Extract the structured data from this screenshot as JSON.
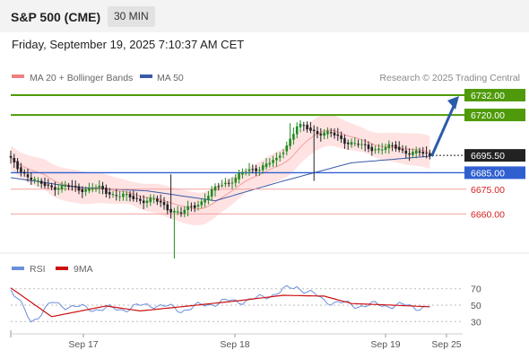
{
  "header": {
    "title": "S&P 500 (CME)",
    "timeframe": "30 MIN"
  },
  "datetime": "Friday, September 19, 2025 7:10:37 AM CET",
  "legend": {
    "bollinger": "MA 20 + Bollinger Bands",
    "ma50": "MA 50",
    "rsi": "RSI",
    "rsi_ma": "9MA",
    "credit": "Research © 2025 Trading Central"
  },
  "colors": {
    "up": "#1f8a1f",
    "down": "#222222",
    "bb_band": "#ffdada",
    "bb_mid": "#f08080",
    "ma50": "#3a5aa8",
    "resistance": "#4f9a0a",
    "support_line": "#f5a0a0",
    "support_label": "#d62020",
    "current": "#222222",
    "pivot": "#3060d0",
    "arrow": "#2a5caa",
    "rsi": "#6a8fdc",
    "rsi_ma": "#cc1111"
  },
  "chart_data": {
    "type": "candlestick",
    "x_ticks": [
      "Sep 17",
      "Sep 18",
      "Sep 19",
      "Sep 25"
    ],
    "price_range": [
      6633,
      6738
    ],
    "levels": [
      {
        "label": "6732.00",
        "value": 6732,
        "kind": "resistance"
      },
      {
        "label": "6720.00",
        "value": 6720,
        "kind": "resistance"
      },
      {
        "label": "6695.50",
        "value": 6695.5,
        "kind": "current"
      },
      {
        "label": "6685.00",
        "value": 6685,
        "kind": "pivot"
      },
      {
        "label": "6675.00",
        "value": 6675,
        "kind": "support"
      },
      {
        "label": "6660.00",
        "value": 6660,
        "kind": "support"
      }
    ],
    "anchors": [
      {
        "i": 0,
        "v": 6692
      },
      {
        "i": 8,
        "v": 6678
      },
      {
        "i": 16,
        "v": 6676
      },
      {
        "i": 26,
        "v": 6675
      },
      {
        "i": 34,
        "v": 6670
      },
      {
        "i": 42,
        "v": 6668
      },
      {
        "i": 50,
        "v": 6660
      },
      {
        "i": 56,
        "v": 6668
      },
      {
        "i": 62,
        "v": 6678
      },
      {
        "i": 72,
        "v": 6688
      },
      {
        "i": 78,
        "v": 6692
      },
      {
        "i": 84,
        "v": 6713
      },
      {
        "i": 94,
        "v": 6708
      },
      {
        "i": 104,
        "v": 6700
      },
      {
        "i": 113,
        "v": 6700
      },
      {
        "i": 118,
        "v": 6697
      },
      {
        "i": 123,
        "v": 6695.5
      }
    ],
    "ma50": [
      {
        "i": 0,
        "v": 6682
      },
      {
        "i": 20,
        "v": 6676
      },
      {
        "i": 40,
        "v": 6674
      },
      {
        "i": 60,
        "v": 6668
      },
      {
        "i": 80,
        "v": 6680
      },
      {
        "i": 100,
        "v": 6691
      },
      {
        "i": 123,
        "v": 6695
      }
    ],
    "rsi": {
      "range": [
        15,
        85
      ],
      "ticks": [
        70,
        50,
        30
      ],
      "rsi_anchors": [
        {
          "i": 0,
          "v": 70
        },
        {
          "i": 6,
          "v": 30
        },
        {
          "i": 12,
          "v": 52
        },
        {
          "i": 22,
          "v": 46
        },
        {
          "i": 32,
          "v": 45
        },
        {
          "i": 42,
          "v": 51
        },
        {
          "i": 50,
          "v": 44
        },
        {
          "i": 60,
          "v": 53
        },
        {
          "i": 72,
          "v": 57
        },
        {
          "i": 84,
          "v": 73
        },
        {
          "i": 92,
          "v": 56
        },
        {
          "i": 100,
          "v": 50
        },
        {
          "i": 112,
          "v": 50
        },
        {
          "i": 123,
          "v": 47
        }
      ],
      "ma_anchors": [
        {
          "i": 0,
          "v": 71
        },
        {
          "i": 12,
          "v": 36
        },
        {
          "i": 28,
          "v": 49
        },
        {
          "i": 38,
          "v": 43
        },
        {
          "i": 50,
          "v": 48
        },
        {
          "i": 66,
          "v": 55
        },
        {
          "i": 80,
          "v": 62
        },
        {
          "i": 92,
          "v": 61
        },
        {
          "i": 100,
          "v": 52
        },
        {
          "i": 112,
          "v": 50
        },
        {
          "i": 123,
          "v": 48
        }
      ]
    }
  }
}
